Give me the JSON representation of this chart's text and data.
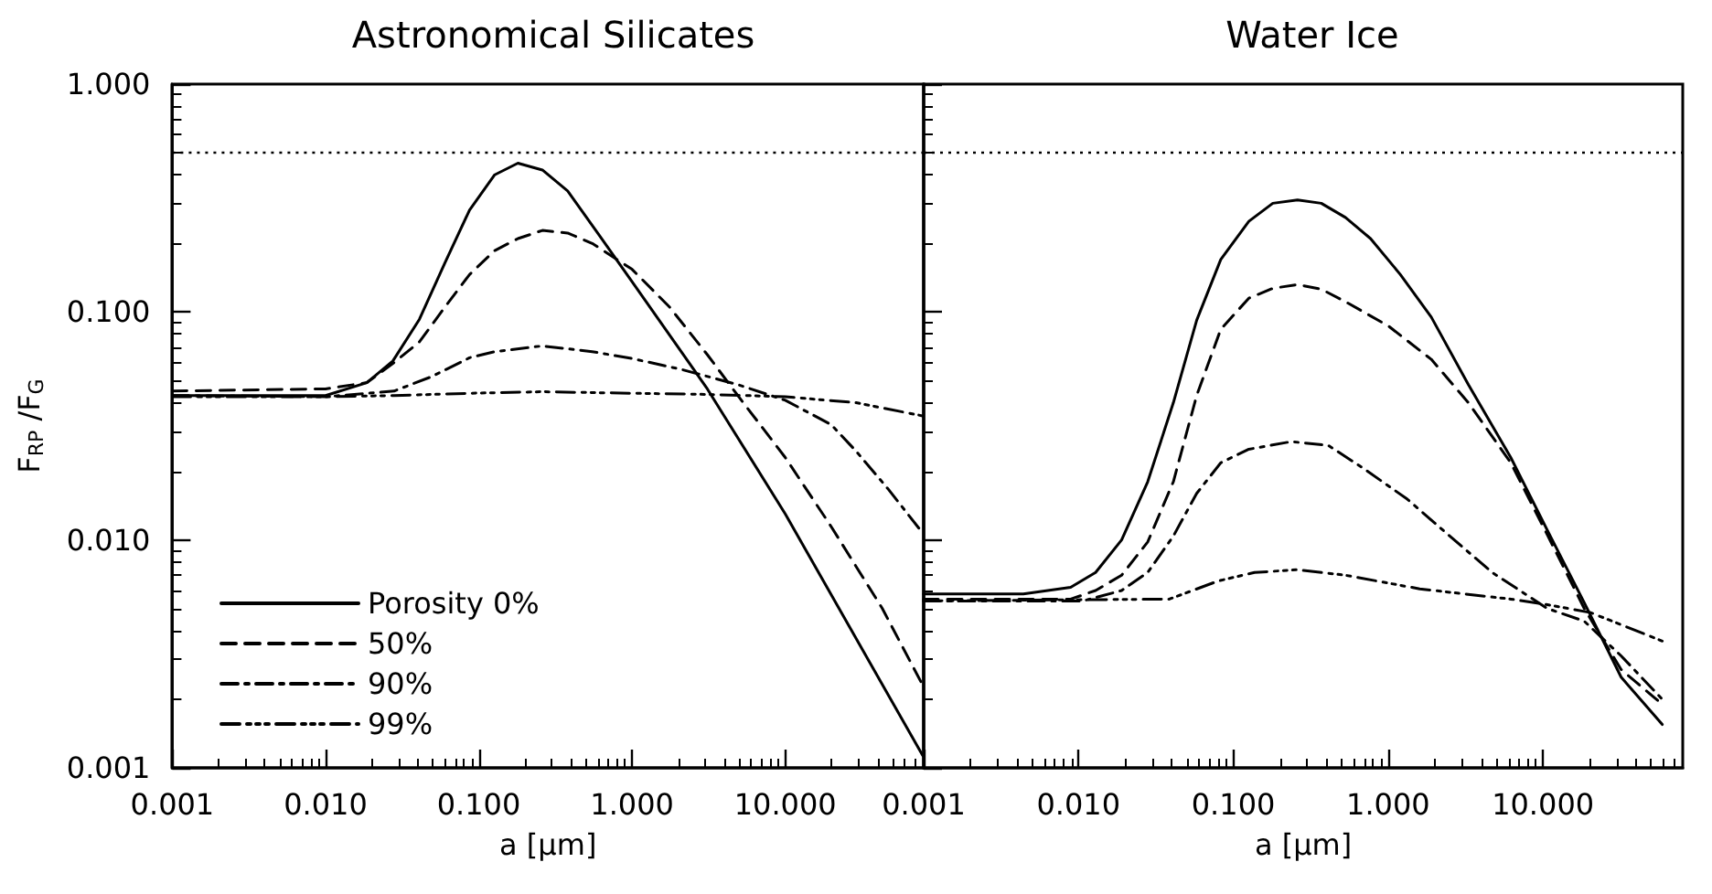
{
  "chart_data": [
    {
      "type": "line",
      "title": "Astronomical Silicates",
      "xlabel": "a [μm]",
      "ylabel": "F$_{RP}$ /F$_{G}$",
      "log": "xy",
      "grid": false,
      "legend": "bottom left",
      "xlim": [
        0.001,
        80
      ],
      "xticks": [
        {
          "value": 0.001,
          "label": "0.001"
        },
        {
          "value": 0.01,
          "label": "0.010"
        },
        {
          "value": 0.1,
          "label": "0.100"
        },
        {
          "value": 1,
          "label": "1.000"
        },
        {
          "value": 10,
          "label": "10.000"
        }
      ],
      "ylim": [
        0.001,
        1
      ],
      "yticks": [
        {
          "value": 0.001,
          "label": "0.001"
        },
        {
          "value": 0.01,
          "label": "0.010"
        },
        {
          "value": 0.1,
          "label": "0.100"
        },
        {
          "value": 1,
          "label": "1.000"
        }
      ],
      "ref_lines": [
        {
          "axis": "y",
          "value": 0.5,
          "color": "#000000",
          "line_style": "dotted"
        }
      ],
      "series": [
        {
          "name": "Porosity 0%",
          "color": "#000000",
          "line_style": "solid",
          "x": [
            0.001,
            0.01,
            0.0186,
            0.0275,
            0.041,
            0.06,
            0.087,
            0.127,
            0.18,
            0.26,
            0.38,
            0.55,
            1,
            3.1,
            10,
            79
          ],
          "values": [
            0.043,
            0.043,
            0.049,
            0.061,
            0.093,
            0.164,
            0.28,
            0.4,
            0.45,
            0.42,
            0.34,
            0.24,
            0.136,
            0.046,
            0.013,
            0.00113
          ]
        },
        {
          "name": "50%",
          "color": "#000000",
          "line_style": "dashed",
          "x": [
            0.001,
            0.01,
            0.0186,
            0.028,
            0.041,
            0.06,
            0.087,
            0.127,
            0.18,
            0.26,
            0.38,
            0.55,
            1,
            1.76,
            3.1,
            4.9,
            10,
            20,
            43,
            79
          ],
          "values": [
            0.045,
            0.046,
            0.049,
            0.06,
            0.074,
            0.105,
            0.146,
            0.186,
            0.21,
            0.228,
            0.222,
            0.2,
            0.154,
            0.105,
            0.065,
            0.043,
            0.023,
            0.0114,
            0.005,
            0.0023
          ]
        },
        {
          "name": "90%",
          "color": "#000000",
          "line_style": "dashdot",
          "x": [
            0.001,
            0.01,
            0.028,
            0.049,
            0.087,
            0.127,
            0.26,
            0.55,
            1,
            2.1,
            4.9,
            10,
            20,
            29,
            47,
            79
          ],
          "values": [
            0.043,
            0.0425,
            0.045,
            0.052,
            0.063,
            0.067,
            0.071,
            0.067,
            0.0625,
            0.056,
            0.048,
            0.041,
            0.032,
            0.0245,
            0.0167,
            0.0107
          ]
        },
        {
          "name": "99%",
          "color": "#000000",
          "line_style": "dashdotdot",
          "x": [
            0.001,
            0.01,
            0.028,
            0.087,
            0.26,
            1,
            3.1,
            10,
            29,
            79
          ],
          "values": [
            0.0425,
            0.0425,
            0.043,
            0.044,
            0.0447,
            0.044,
            0.0435,
            0.0425,
            0.04,
            0.035
          ]
        }
      ]
    },
    {
      "type": "line",
      "title": "Water Ice",
      "xlabel": "a [μm]",
      "log": "xy",
      "grid": false,
      "tick_labels": "x",
      "xlim": [
        0.001,
        80
      ],
      "xticks": [
        {
          "value": 0.001,
          "label": "0.001"
        },
        {
          "value": 0.01,
          "label": "0.010"
        },
        {
          "value": 0.1,
          "label": "0.100"
        },
        {
          "value": 1,
          "label": "1.000"
        },
        {
          "value": 10,
          "label": "10.000"
        }
      ],
      "ylim": [
        0.001,
        1
      ],
      "yticks": [
        {
          "value": 0.001,
          "label": null
        },
        {
          "value": 0.01,
          "label": null
        },
        {
          "value": 0.1,
          "label": null
        },
        {
          "value": 1,
          "label": null
        }
      ],
      "ref_lines": [
        {
          "axis": "y",
          "value": 0.5,
          "color": "#000000",
          "line_style": "dotted"
        }
      ],
      "series": [
        {
          "color": "#000000",
          "line_style": "solid",
          "x": [
            0.001,
            0.0044,
            0.0089,
            0.0129,
            0.019,
            0.028,
            0.041,
            0.058,
            0.083,
            0.126,
            0.18,
            0.26,
            0.37,
            0.53,
            0.77,
            1.2,
            1.9,
            3.3,
            6.2,
            10.7,
            18.5,
            32,
            59
          ],
          "values": [
            0.0058,
            0.0058,
            0.0062,
            0.0072,
            0.01,
            0.018,
            0.04,
            0.092,
            0.17,
            0.25,
            0.3,
            0.31,
            0.3,
            0.26,
            0.21,
            0.146,
            0.095,
            0.048,
            0.023,
            0.011,
            0.0053,
            0.0025,
            0.00155
          ]
        },
        {
          "color": "#000000",
          "line_style": "dashed",
          "x": [
            0.001,
            0.0089,
            0.0129,
            0.019,
            0.028,
            0.041,
            0.058,
            0.083,
            0.126,
            0.18,
            0.26,
            0.37,
            0.53,
            1,
            1.9,
            3.3,
            6.2,
            10.7,
            18.5,
            32,
            59
          ],
          "values": [
            0.0055,
            0.0055,
            0.006,
            0.007,
            0.0098,
            0.018,
            0.043,
            0.084,
            0.115,
            0.127,
            0.132,
            0.126,
            0.111,
            0.087,
            0.062,
            0.04,
            0.0218,
            0.0105,
            0.005,
            0.0027,
            0.0019
          ]
        },
        {
          "color": "#000000",
          "line_style": "dashdot",
          "x": [
            0.001,
            0.0107,
            0.019,
            0.028,
            0.041,
            0.058,
            0.083,
            0.126,
            0.237,
            0.41,
            0.7,
            1.33,
            2.5,
            4.7,
            10.7,
            18.5,
            32,
            59
          ],
          "values": [
            0.0054,
            0.0054,
            0.006,
            0.0072,
            0.0104,
            0.016,
            0.0218,
            0.025,
            0.027,
            0.026,
            0.0205,
            0.0151,
            0.0104,
            0.0072,
            0.005,
            0.0044,
            0.0031,
            0.002
          ]
        },
        {
          "color": "#000000",
          "line_style": "dashdotdot",
          "x": [
            0.001,
            0.0386,
            0.0796,
            0.137,
            0.26,
            0.53,
            1.6,
            6.2,
            10.7,
            20.3,
            59
          ],
          "values": [
            0.0054,
            0.0055,
            0.0066,
            0.0072,
            0.0074,
            0.007,
            0.0061,
            0.0055,
            0.0052,
            0.0048,
            0.0036
          ]
        }
      ]
    }
  ]
}
